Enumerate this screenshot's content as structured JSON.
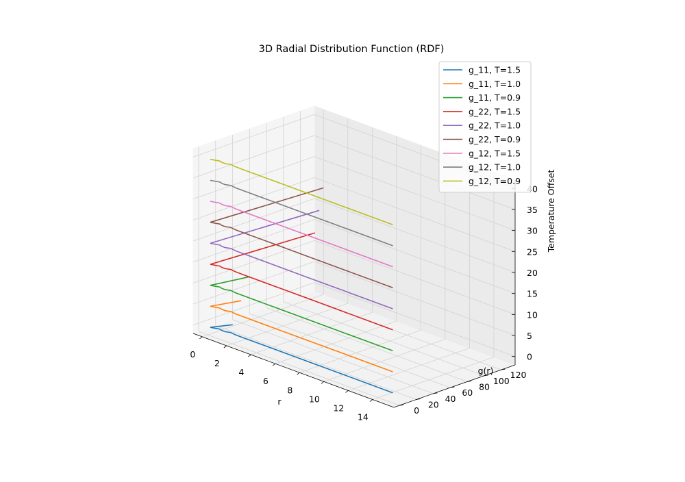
{
  "chart_data": {
    "type": "line",
    "projection": "3d",
    "title": "3D Radial Distribution Function (RDF)",
    "xlabel": "r",
    "ylabel": "g(r)",
    "zlabel": "Temperature Offset",
    "xlim": [
      -0.75,
      15.75
    ],
    "ylim": [
      -6.5,
      136.5
    ],
    "zlim": [
      -2,
      42
    ],
    "xticks": [
      0,
      2,
      4,
      6,
      8,
      10,
      12,
      14
    ],
    "yticks": [
      0,
      20,
      40,
      60,
      80,
      100,
      120
    ],
    "zticks": [
      0,
      5,
      10,
      15,
      20,
      25,
      30,
      35,
      40
    ],
    "grid": true,
    "legend_position": "top-right",
    "series": [
      {
        "name": "g_11, T=1.5",
        "color": "#1f77b4",
        "offset": 0,
        "points": [
          [
            0.2,
            0,
            0
          ],
          [
            0.8,
            3,
            0
          ],
          [
            1.0,
            2,
            0
          ],
          [
            1.3,
            2,
            0
          ],
          [
            1.6,
            4,
            0
          ],
          [
            2.1,
            3,
            0
          ],
          [
            3,
            3,
            0
          ],
          [
            5,
            3,
            0
          ],
          [
            8,
            3,
            0
          ],
          [
            11,
            3,
            0
          ],
          [
            15,
            3,
            0
          ]
        ],
        "spike": [
          [
            0.2,
            0,
            0
          ],
          [
            0.8,
            18,
            0
          ]
        ]
      },
      {
        "name": "g_11, T=1.0",
        "color": "#ff7f0e",
        "offset": 5,
        "points": [
          [
            0.2,
            0,
            5
          ],
          [
            0.8,
            3,
            5
          ],
          [
            1.0,
            2,
            5
          ],
          [
            1.3,
            2,
            5
          ],
          [
            1.6,
            4,
            5
          ],
          [
            2.1,
            3,
            5
          ],
          [
            3,
            3,
            5
          ],
          [
            5,
            3,
            5
          ],
          [
            8,
            3,
            5
          ],
          [
            11,
            3,
            5
          ],
          [
            15,
            3,
            5
          ]
        ],
        "spike": [
          [
            0.2,
            0,
            5
          ],
          [
            0.8,
            28,
            5
          ]
        ]
      },
      {
        "name": "g_11, T=0.9",
        "color": "#2ca02c",
        "offset": 10,
        "points": [
          [
            0.2,
            0,
            10
          ],
          [
            0.8,
            3,
            10
          ],
          [
            1.0,
            2,
            10
          ],
          [
            1.3,
            2,
            10
          ],
          [
            1.6,
            4,
            10
          ],
          [
            2.1,
            3,
            10
          ],
          [
            3,
            3,
            10
          ],
          [
            5,
            3,
            10
          ],
          [
            8,
            3,
            10
          ],
          [
            11,
            3,
            10
          ],
          [
            15,
            3,
            10
          ]
        ],
        "spike": [
          [
            0.2,
            0,
            10
          ],
          [
            0.8,
            38,
            10
          ]
        ]
      },
      {
        "name": "g_22, T=1.5",
        "color": "#d62728",
        "offset": 15,
        "points": [
          [
            0.2,
            0,
            15
          ],
          [
            0.8,
            3,
            15
          ],
          [
            1.0,
            2,
            15
          ],
          [
            1.3,
            2,
            15
          ],
          [
            1.6,
            4,
            15
          ],
          [
            2.1,
            3,
            15
          ],
          [
            3,
            3,
            15
          ],
          [
            5,
            3,
            15
          ],
          [
            8,
            3,
            15
          ],
          [
            11,
            3,
            15
          ],
          [
            15,
            3,
            15
          ]
        ],
        "spike": [
          [
            0.2,
            0,
            15
          ],
          [
            0.8,
            115,
            15
          ]
        ]
      },
      {
        "name": "g_22, T=1.0",
        "color": "#9467bd",
        "offset": 20,
        "points": [
          [
            0.2,
            0,
            20
          ],
          [
            0.8,
            3,
            20
          ],
          [
            1.0,
            2,
            20
          ],
          [
            1.3,
            2,
            20
          ],
          [
            1.6,
            4,
            20
          ],
          [
            2.1,
            3,
            20
          ],
          [
            3,
            3,
            20
          ],
          [
            5,
            3,
            20
          ],
          [
            8,
            3,
            20
          ],
          [
            11,
            3,
            20
          ],
          [
            15,
            3,
            20
          ]
        ],
        "spike": [
          [
            0.2,
            0,
            20
          ],
          [
            0.8,
            120,
            20
          ]
        ]
      },
      {
        "name": "g_22, T=0.9",
        "color": "#8c564b",
        "offset": 25,
        "points": [
          [
            0.2,
            0,
            25
          ],
          [
            0.8,
            3,
            25
          ],
          [
            1.0,
            2,
            25
          ],
          [
            1.3,
            2,
            25
          ],
          [
            1.6,
            4,
            25
          ],
          [
            2.1,
            3,
            25
          ],
          [
            3,
            3,
            25
          ],
          [
            5,
            3,
            25
          ],
          [
            8,
            3,
            25
          ],
          [
            11,
            3,
            25
          ],
          [
            15,
            3,
            25
          ]
        ],
        "spike": [
          [
            0.2,
            0,
            25
          ],
          [
            0.8,
            125,
            25
          ]
        ]
      },
      {
        "name": "g_12, T=1.5",
        "color": "#e377c2",
        "offset": 30,
        "points": [
          [
            0.2,
            0,
            30
          ],
          [
            0.8,
            3,
            30
          ],
          [
            1.0,
            2,
            30
          ],
          [
            1.3,
            2,
            30
          ],
          [
            1.6,
            4,
            30
          ],
          [
            2.1,
            3,
            30
          ],
          [
            3,
            3,
            30
          ],
          [
            5,
            3,
            30
          ],
          [
            8,
            3,
            30
          ],
          [
            11,
            3,
            30
          ],
          [
            15,
            3,
            30
          ]
        ]
      },
      {
        "name": "g_12, T=1.0",
        "color": "#7f7f7f",
        "offset": 35,
        "points": [
          [
            0.2,
            0,
            35
          ],
          [
            0.8,
            3,
            35
          ],
          [
            1.0,
            2,
            35
          ],
          [
            1.3,
            2,
            35
          ],
          [
            1.6,
            4,
            35
          ],
          [
            2.1,
            3,
            35
          ],
          [
            3,
            3,
            35
          ],
          [
            5,
            3,
            35
          ],
          [
            8,
            3,
            35
          ],
          [
            11,
            3,
            35
          ],
          [
            15,
            3,
            35
          ]
        ]
      },
      {
        "name": "g_12, T=0.9",
        "color": "#bcbd22",
        "offset": 40,
        "points": [
          [
            0.2,
            0,
            40
          ],
          [
            0.8,
            3,
            40
          ],
          [
            1.0,
            2,
            40
          ],
          [
            1.3,
            2,
            40
          ],
          [
            1.6,
            4,
            40
          ],
          [
            2.1,
            3,
            40
          ],
          [
            3,
            3,
            40
          ],
          [
            5,
            3,
            40
          ],
          [
            8,
            3,
            40
          ],
          [
            11,
            3,
            40
          ],
          [
            15,
            3,
            40
          ]
        ]
      }
    ]
  }
}
